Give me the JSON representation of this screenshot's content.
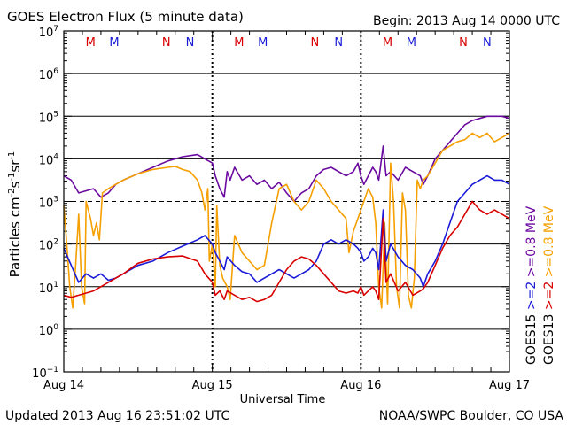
{
  "chart_data": {
    "type": "line",
    "title": "GOES Electron Flux (5 minute data)",
    "begin_label": "Begin: 2013 Aug 14 0000 UTC",
    "xlabel": "Universal Time",
    "ylabel_parts": [
      "Particles cm",
      "-2",
      "s",
      "-1",
      "sr",
      "-1"
    ],
    "x_tick_labels": [
      "Aug 14",
      "Aug 15",
      "Aug 16",
      "Aug 17"
    ],
    "x_range_days": [
      0,
      3
    ],
    "y_log_range": [
      -1,
      7
    ],
    "y_tick_base": "10",
    "y_tick_exponents": [
      "7",
      "6",
      "5",
      "4",
      "3",
      "2",
      "1",
      "0",
      "−1"
    ],
    "gridlines_solid_exp": [
      6,
      5,
      4,
      2,
      1,
      0
    ],
    "gridline_dashed_exp": 3,
    "mn_markers": [
      {
        "label": "M",
        "day": 0.18,
        "color": "#d80000"
      },
      {
        "label": "M",
        "day": 0.34,
        "color": "#1a1ad8"
      },
      {
        "label": "N",
        "day": 0.69,
        "color": "#d80000"
      },
      {
        "label": "N",
        "day": 0.85,
        "color": "#1a1ad8"
      },
      {
        "label": "M",
        "day": 1.18,
        "color": "#d80000"
      },
      {
        "label": "M",
        "day": 1.34,
        "color": "#1a1ad8"
      },
      {
        "label": "N",
        "day": 1.69,
        "color": "#d80000"
      },
      {
        "label": "N",
        "day": 1.85,
        "color": "#1a1ad8"
      },
      {
        "label": "M",
        "day": 2.18,
        "color": "#d80000"
      },
      {
        "label": "M",
        "day": 2.34,
        "color": "#1a1ad8"
      },
      {
        "label": "N",
        "day": 2.69,
        "color": "#d80000"
      },
      {
        "label": "N",
        "day": 2.85,
        "color": "#1a1ad8"
      }
    ],
    "legend": [
      {
        "text": "GOES13",
        "color": "#000000"
      },
      {
        "text": ">=2",
        "color": "#d80000"
      },
      {
        "text": ">=0.8 MeV",
        "color": "#f5a000"
      },
      {
        "text": "GOES15",
        "color": "#000000"
      },
      {
        "text": ">=2",
        "color": "#1a1ad8"
      },
      {
        "text": ">=0.8 MeV",
        "color": "#6a0aa0"
      }
    ],
    "series": [
      {
        "key": "g15_08",
        "color": "#6a0aa0",
        "points": [
          [
            0,
            3.6
          ],
          [
            0.05,
            3.5
          ],
          [
            0.1,
            3.2
          ],
          [
            0.15,
            3.25
          ],
          [
            0.2,
            3.3
          ],
          [
            0.25,
            3.1
          ],
          [
            0.3,
            3.2
          ],
          [
            0.35,
            3.4
          ],
          [
            0.4,
            3.5
          ],
          [
            0.5,
            3.65
          ],
          [
            0.6,
            3.8
          ],
          [
            0.7,
            3.95
          ],
          [
            0.8,
            4.05
          ],
          [
            0.9,
            4.1
          ],
          [
            0.95,
            4.0
          ],
          [
            1.0,
            3.9
          ],
          [
            1.02,
            3.6
          ],
          [
            1.05,
            3.3
          ],
          [
            1.08,
            3.1
          ],
          [
            1.1,
            3.7
          ],
          [
            1.12,
            3.5
          ],
          [
            1.15,
            3.8
          ],
          [
            1.2,
            3.5
          ],
          [
            1.25,
            3.6
          ],
          [
            1.3,
            3.4
          ],
          [
            1.35,
            3.5
          ],
          [
            1.4,
            3.3
          ],
          [
            1.45,
            3.45
          ],
          [
            1.5,
            3.2
          ],
          [
            1.55,
            3.0
          ],
          [
            1.6,
            3.2
          ],
          [
            1.65,
            3.3
          ],
          [
            1.7,
            3.6
          ],
          [
            1.75,
            3.75
          ],
          [
            1.8,
            3.8
          ],
          [
            1.85,
            3.7
          ],
          [
            1.9,
            3.6
          ],
          [
            1.95,
            3.7
          ],
          [
            1.98,
            3.9
          ],
          [
            2.0,
            3.6
          ],
          [
            2.02,
            3.4
          ],
          [
            2.05,
            3.6
          ],
          [
            2.08,
            3.8
          ],
          [
            2.1,
            3.7
          ],
          [
            2.12,
            3.5
          ],
          [
            2.15,
            4.3
          ],
          [
            2.17,
            3.6
          ],
          [
            2.2,
            3.7
          ],
          [
            2.25,
            3.5
          ],
          [
            2.3,
            3.8
          ],
          [
            2.35,
            3.7
          ],
          [
            2.4,
            3.6
          ],
          [
            2.42,
            3.4
          ],
          [
            2.45,
            3.6
          ],
          [
            2.5,
            4.0
          ],
          [
            2.55,
            4.2
          ],
          [
            2.6,
            4.4
          ],
          [
            2.65,
            4.6
          ],
          [
            2.7,
            4.8
          ],
          [
            2.75,
            4.9
          ],
          [
            2.8,
            4.95
          ],
          [
            2.85,
            5.0
          ],
          [
            2.9,
            5.0
          ],
          [
            2.95,
            5.0
          ],
          [
            3.0,
            4.95
          ]
        ]
      },
      {
        "key": "g13_08",
        "color": "#f5a000",
        "points": [
          [
            0,
            2.9
          ],
          [
            0.02,
            2.0
          ],
          [
            0.04,
            1.0
          ],
          [
            0.06,
            0.5
          ],
          [
            0.08,
            1.5
          ],
          [
            0.1,
            2.7
          ],
          [
            0.12,
            1.0
          ],
          [
            0.14,
            0.6
          ],
          [
            0.15,
            3.0
          ],
          [
            0.18,
            2.6
          ],
          [
            0.2,
            2.2
          ],
          [
            0.22,
            2.5
          ],
          [
            0.24,
            2.1
          ],
          [
            0.26,
            3.2
          ],
          [
            0.3,
            3.3
          ],
          [
            0.35,
            3.4
          ],
          [
            0.4,
            3.5
          ],
          [
            0.5,
            3.65
          ],
          [
            0.6,
            3.75
          ],
          [
            0.7,
            3.8
          ],
          [
            0.75,
            3.82
          ],
          [
            0.8,
            3.75
          ],
          [
            0.85,
            3.7
          ],
          [
            0.9,
            3.5
          ],
          [
            0.93,
            3.2
          ],
          [
            0.95,
            2.8
          ],
          [
            0.97,
            3.3
          ],
          [
            0.98,
            1.6
          ],
          [
            1.0,
            2.0
          ],
          [
            1.02,
            1.0
          ],
          [
            1.03,
            2.9
          ],
          [
            1.05,
            1.5
          ],
          [
            1.07,
            1.2
          ],
          [
            1.1,
            1.0
          ],
          [
            1.12,
            0.7
          ],
          [
            1.15,
            2.2
          ],
          [
            1.2,
            1.8
          ],
          [
            1.25,
            1.6
          ],
          [
            1.3,
            1.4
          ],
          [
            1.35,
            1.5
          ],
          [
            1.4,
            2.5
          ],
          [
            1.45,
            3.3
          ],
          [
            1.5,
            3.4
          ],
          [
            1.55,
            3.0
          ],
          [
            1.6,
            2.8
          ],
          [
            1.65,
            3.0
          ],
          [
            1.7,
            3.5
          ],
          [
            1.75,
            3.3
          ],
          [
            1.8,
            3.0
          ],
          [
            1.85,
            2.8
          ],
          [
            1.9,
            2.6
          ],
          [
            1.92,
            1.8
          ],
          [
            1.95,
            2.3
          ],
          [
            1.98,
            2.6
          ],
          [
            2.0,
            2.8
          ],
          [
            2.02,
            3.0
          ],
          [
            2.05,
            3.3
          ],
          [
            2.08,
            3.1
          ],
          [
            2.1,
            2.5
          ],
          [
            2.12,
            1.0
          ],
          [
            2.14,
            0.5
          ],
          [
            2.16,
            2.5
          ],
          [
            2.18,
            0.6
          ],
          [
            2.2,
            3.9
          ],
          [
            2.22,
            3.0
          ],
          [
            2.24,
            1.0
          ],
          [
            2.26,
            0.5
          ],
          [
            2.28,
            3.2
          ],
          [
            2.3,
            2.8
          ],
          [
            2.32,
            0.8
          ],
          [
            2.34,
            0.5
          ],
          [
            2.36,
            1.2
          ],
          [
            2.38,
            3.5
          ],
          [
            2.4,
            3.3
          ],
          [
            2.42,
            3.5
          ],
          [
            2.45,
            3.6
          ],
          [
            2.5,
            3.9
          ],
          [
            2.55,
            4.2
          ],
          [
            2.6,
            4.3
          ],
          [
            2.65,
            4.4
          ],
          [
            2.7,
            4.45
          ],
          [
            2.75,
            4.6
          ],
          [
            2.8,
            4.5
          ],
          [
            2.85,
            4.6
          ],
          [
            2.9,
            4.4
          ],
          [
            2.95,
            4.5
          ],
          [
            3.0,
            4.6
          ]
        ]
      },
      {
        "key": "g15_2",
        "color": "#1a1ad8",
        "points": [
          [
            0,
            1.9
          ],
          [
            0.05,
            1.5
          ],
          [
            0.1,
            1.1
          ],
          [
            0.15,
            1.3
          ],
          [
            0.2,
            1.2
          ],
          [
            0.25,
            1.3
          ],
          [
            0.3,
            1.15
          ],
          [
            0.35,
            1.2
          ],
          [
            0.4,
            1.3
          ],
          [
            0.5,
            1.5
          ],
          [
            0.6,
            1.6
          ],
          [
            0.7,
            1.8
          ],
          [
            0.8,
            1.95
          ],
          [
            0.9,
            2.1
          ],
          [
            0.95,
            2.2
          ],
          [
            1.0,
            2.0
          ],
          [
            1.02,
            1.8
          ],
          [
            1.05,
            1.6
          ],
          [
            1.08,
            1.4
          ],
          [
            1.1,
            1.7
          ],
          [
            1.15,
            1.5
          ],
          [
            1.2,
            1.35
          ],
          [
            1.25,
            1.3
          ],
          [
            1.3,
            1.1
          ],
          [
            1.35,
            1.2
          ],
          [
            1.4,
            1.3
          ],
          [
            1.45,
            1.4
          ],
          [
            1.5,
            1.3
          ],
          [
            1.55,
            1.2
          ],
          [
            1.6,
            1.3
          ],
          [
            1.65,
            1.4
          ],
          [
            1.7,
            1.6
          ],
          [
            1.75,
            2.0
          ],
          [
            1.8,
            2.1
          ],
          [
            1.85,
            2.0
          ],
          [
            1.9,
            2.1
          ],
          [
            1.95,
            2.0
          ],
          [
            1.98,
            1.9
          ],
          [
            2.0,
            1.8
          ],
          [
            2.02,
            1.6
          ],
          [
            2.05,
            1.7
          ],
          [
            2.08,
            1.9
          ],
          [
            2.1,
            1.8
          ],
          [
            2.12,
            1.4
          ],
          [
            2.15,
            2.8
          ],
          [
            2.17,
            1.6
          ],
          [
            2.2,
            2.0
          ],
          [
            2.25,
            1.7
          ],
          [
            2.3,
            1.5
          ],
          [
            2.35,
            1.4
          ],
          [
            2.4,
            1.2
          ],
          [
            2.42,
            1.0
          ],
          [
            2.45,
            1.3
          ],
          [
            2.5,
            1.6
          ],
          [
            2.55,
            2.0
          ],
          [
            2.6,
            2.5
          ],
          [
            2.65,
            3.0
          ],
          [
            2.7,
            3.2
          ],
          [
            2.75,
            3.4
          ],
          [
            2.8,
            3.5
          ],
          [
            2.85,
            3.6
          ],
          [
            2.9,
            3.5
          ],
          [
            2.95,
            3.5
          ],
          [
            3.0,
            3.4
          ]
        ]
      },
      {
        "key": "g13_2",
        "color": "#d80000",
        "points": [
          [
            0,
            0.8
          ],
          [
            0.05,
            0.75
          ],
          [
            0.1,
            0.8
          ],
          [
            0.15,
            0.85
          ],
          [
            0.2,
            0.9
          ],
          [
            0.25,
            1.0
          ],
          [
            0.3,
            1.1
          ],
          [
            0.35,
            1.2
          ],
          [
            0.4,
            1.3
          ],
          [
            0.5,
            1.55
          ],
          [
            0.6,
            1.65
          ],
          [
            0.7,
            1.7
          ],
          [
            0.8,
            1.72
          ],
          [
            0.9,
            1.6
          ],
          [
            0.95,
            1.3
          ],
          [
            1.0,
            1.1
          ],
          [
            1.02,
            0.8
          ],
          [
            1.05,
            0.9
          ],
          [
            1.08,
            0.7
          ],
          [
            1.1,
            0.9
          ],
          [
            1.15,
            0.8
          ],
          [
            1.2,
            0.7
          ],
          [
            1.25,
            0.75
          ],
          [
            1.3,
            0.65
          ],
          [
            1.35,
            0.7
          ],
          [
            1.4,
            0.8
          ],
          [
            1.45,
            1.1
          ],
          [
            1.5,
            1.4
          ],
          [
            1.55,
            1.6
          ],
          [
            1.6,
            1.7
          ],
          [
            1.65,
            1.65
          ],
          [
            1.7,
            1.5
          ],
          [
            1.75,
            1.3
          ],
          [
            1.8,
            1.1
          ],
          [
            1.85,
            0.9
          ],
          [
            1.9,
            0.85
          ],
          [
            1.95,
            0.9
          ],
          [
            1.98,
            0.85
          ],
          [
            2.0,
            1.0
          ],
          [
            2.02,
            0.8
          ],
          [
            2.05,
            0.9
          ],
          [
            2.08,
            1.0
          ],
          [
            2.1,
            0.9
          ],
          [
            2.12,
            0.7
          ],
          [
            2.15,
            2.6
          ],
          [
            2.17,
            1.1
          ],
          [
            2.2,
            1.3
          ],
          [
            2.25,
            0.9
          ],
          [
            2.3,
            1.1
          ],
          [
            2.35,
            0.8
          ],
          [
            2.4,
            0.9
          ],
          [
            2.42,
            0.95
          ],
          [
            2.45,
            1.1
          ],
          [
            2.5,
            1.5
          ],
          [
            2.55,
            1.9
          ],
          [
            2.6,
            2.2
          ],
          [
            2.65,
            2.4
          ],
          [
            2.7,
            2.7
          ],
          [
            2.75,
            3.0
          ],
          [
            2.8,
            2.8
          ],
          [
            2.85,
            2.7
          ],
          [
            2.9,
            2.8
          ],
          [
            2.95,
            2.7
          ],
          [
            3.0,
            2.6
          ]
        ]
      }
    ]
  },
  "footer": {
    "updated": "Updated 2013 Aug 16 23:51:02 UTC",
    "credit": "NOAA/SWPC Boulder, CO USA"
  }
}
